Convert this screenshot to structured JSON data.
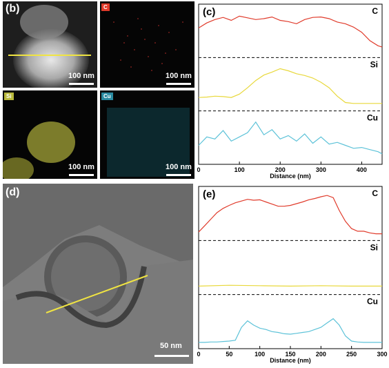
{
  "panels": {
    "b": {
      "label": "(b)",
      "scale_text": "100 nm"
    },
    "map_c": {
      "tag": "C",
      "scale_text": "100 nm",
      "color": "#e03a2a"
    },
    "map_si": {
      "tag": "Si",
      "scale_text": "100 nm",
      "color": "#d9d93a"
    },
    "map_cu": {
      "tag": "Cu",
      "scale_text": "100 nm",
      "color": "#3cc6d8"
    },
    "d": {
      "label": "(d)",
      "scale_text": "50 nm"
    }
  },
  "chart_data": [
    {
      "type": "line",
      "panel_label": "(c)",
      "xlabel": "Distance (nm)",
      "xlim": [
        0,
        450
      ],
      "xticks": [
        0,
        100,
        200,
        300,
        400
      ],
      "series": [
        {
          "name": "C",
          "color": "#e03a2a",
          "x": [
            0,
            20,
            40,
            60,
            80,
            100,
            120,
            140,
            160,
            180,
            200,
            220,
            240,
            260,
            280,
            300,
            320,
            340,
            360,
            380,
            400,
            420,
            440,
            450
          ],
          "y": [
            0.6,
            0.72,
            0.8,
            0.85,
            0.78,
            0.88,
            0.84,
            0.8,
            0.82,
            0.86,
            0.78,
            0.75,
            0.7,
            0.8,
            0.85,
            0.86,
            0.82,
            0.74,
            0.7,
            0.62,
            0.5,
            0.3,
            0.18,
            0.15
          ]
        },
        {
          "name": "Si",
          "color": "#e8d83a",
          "x": [
            0,
            20,
            40,
            60,
            80,
            100,
            120,
            140,
            160,
            180,
            200,
            220,
            240,
            260,
            280,
            300,
            320,
            340,
            360,
            380,
            400,
            420,
            440,
            450
          ],
          "y": [
            0.22,
            0.23,
            0.25,
            0.24,
            0.22,
            0.3,
            0.45,
            0.62,
            0.75,
            0.82,
            0.9,
            0.85,
            0.78,
            0.74,
            0.68,
            0.58,
            0.45,
            0.25,
            0.1,
            0.08,
            0.08,
            0.08,
            0.08,
            0.08
          ]
        },
        {
          "name": "Cu",
          "color": "#5cc2d8",
          "x": [
            0,
            20,
            40,
            60,
            80,
            100,
            120,
            140,
            160,
            180,
            200,
            220,
            240,
            260,
            280,
            300,
            320,
            340,
            360,
            380,
            400,
            420,
            440,
            450
          ],
          "y": [
            0.35,
            0.55,
            0.5,
            0.7,
            0.45,
            0.55,
            0.65,
            0.9,
            0.6,
            0.72,
            0.5,
            0.58,
            0.45,
            0.62,
            0.4,
            0.55,
            0.38,
            0.42,
            0.35,
            0.28,
            0.3,
            0.25,
            0.2,
            0.15
          ]
        }
      ]
    },
    {
      "type": "line",
      "panel_label": "(e)",
      "xlabel": "Distance (nm)",
      "xlim": [
        0,
        300
      ],
      "xticks": [
        0,
        50,
        100,
        150,
        200,
        250,
        300
      ],
      "series": [
        {
          "name": "C",
          "color": "#e03a2a",
          "x": [
            0,
            10,
            20,
            30,
            40,
            50,
            60,
            70,
            80,
            90,
            100,
            110,
            120,
            130,
            140,
            150,
            160,
            170,
            180,
            190,
            200,
            210,
            220,
            230,
            240,
            250,
            260,
            270,
            280,
            290,
            300
          ],
          "y": [
            0.1,
            0.25,
            0.4,
            0.55,
            0.65,
            0.72,
            0.78,
            0.82,
            0.86,
            0.84,
            0.85,
            0.8,
            0.75,
            0.7,
            0.7,
            0.72,
            0.76,
            0.8,
            0.85,
            0.88,
            0.92,
            0.95,
            0.9,
            0.6,
            0.35,
            0.18,
            0.12,
            0.12,
            0.08,
            0.06,
            0.06
          ]
        },
        {
          "name": "Si",
          "color": "#e8d83a",
          "x": [
            0,
            50,
            100,
            150,
            200,
            250,
            300
          ],
          "y": [
            0.1,
            0.12,
            0.11,
            0.1,
            0.11,
            0.1,
            0.1
          ]
        },
        {
          "name": "Cu",
          "color": "#5cc2d8",
          "x": [
            0,
            10,
            20,
            30,
            40,
            50,
            60,
            70,
            80,
            90,
            100,
            110,
            120,
            130,
            140,
            150,
            160,
            170,
            180,
            190,
            200,
            210,
            220,
            230,
            240,
            250,
            260,
            270,
            280,
            290,
            300
          ],
          "y": [
            0.05,
            0.05,
            0.06,
            0.06,
            0.07,
            0.08,
            0.1,
            0.4,
            0.55,
            0.45,
            0.38,
            0.35,
            0.3,
            0.28,
            0.25,
            0.24,
            0.26,
            0.28,
            0.3,
            0.35,
            0.4,
            0.5,
            0.6,
            0.45,
            0.2,
            0.08,
            0.06,
            0.05,
            0.05,
            0.05,
            0.05
          ]
        }
      ]
    }
  ]
}
